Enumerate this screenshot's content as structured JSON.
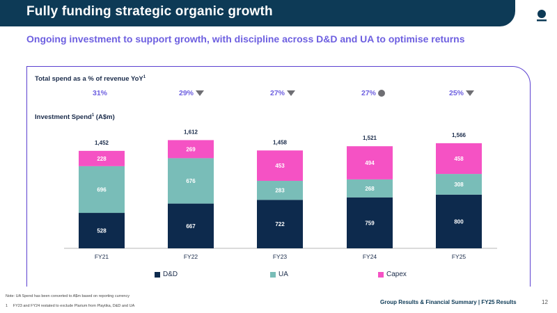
{
  "header": {
    "title": "Fully funding strategic organic growth"
  },
  "subtitle": "Ongoing investment to support growth, with discipline across D&D and UA to optimise returns",
  "chart_data": {
    "type": "bar",
    "stacked": true,
    "pct_label": "Total spend as a % of revenue YoY",
    "pct_label_sup": "1",
    "spend_label": "Investment Spend",
    "spend_label_sup": "1",
    "spend_label_unit": " (A$m)",
    "categories": [
      "FY21",
      "FY22",
      "FY23",
      "FY24",
      "FY25"
    ],
    "pct_of_revenue": [
      {
        "value": "31%",
        "marker": "none"
      },
      {
        "value": "29%",
        "marker": "down-triangle"
      },
      {
        "value": "27%",
        "marker": "down-triangle"
      },
      {
        "value": "27%",
        "marker": "circle"
      },
      {
        "value": "25%",
        "marker": "down-triangle"
      }
    ],
    "totals": [
      1452,
      1612,
      1458,
      1521,
      1566
    ],
    "series": [
      {
        "name": "D&D",
        "color": "#0d2a4d",
        "label_color": "#ffffff",
        "values": [
          528,
          667,
          722,
          759,
          800
        ]
      },
      {
        "name": "UA",
        "color": "#79bdb8",
        "label_color": "#ffffff",
        "values": [
          696,
          676,
          283,
          268,
          308
        ]
      },
      {
        "name": "Capex",
        "color": "#f552c4",
        "label_color": "#ffffff",
        "values": [
          228,
          269,
          453,
          494,
          458
        ]
      }
    ],
    "legend_position": "bottom"
  },
  "footnotes": {
    "note": "Note: UA Spend has been converted to A$m based on reporting currency",
    "note_1_num": "1",
    "note_1": "FY23 and FY24 restated to exclude Plarium from Playtika, D&D and UA"
  },
  "footer": {
    "section": "Group Results & Financial Summary  |  FY25 Results",
    "page_number": "12"
  },
  "colors": {
    "brand_dark": "#0d3a56",
    "accent_purple": "#6d5fe0",
    "marker_grey": "#6e6e73"
  },
  "icons": {
    "logo": "aristocrat-dot-logo-icon"
  }
}
